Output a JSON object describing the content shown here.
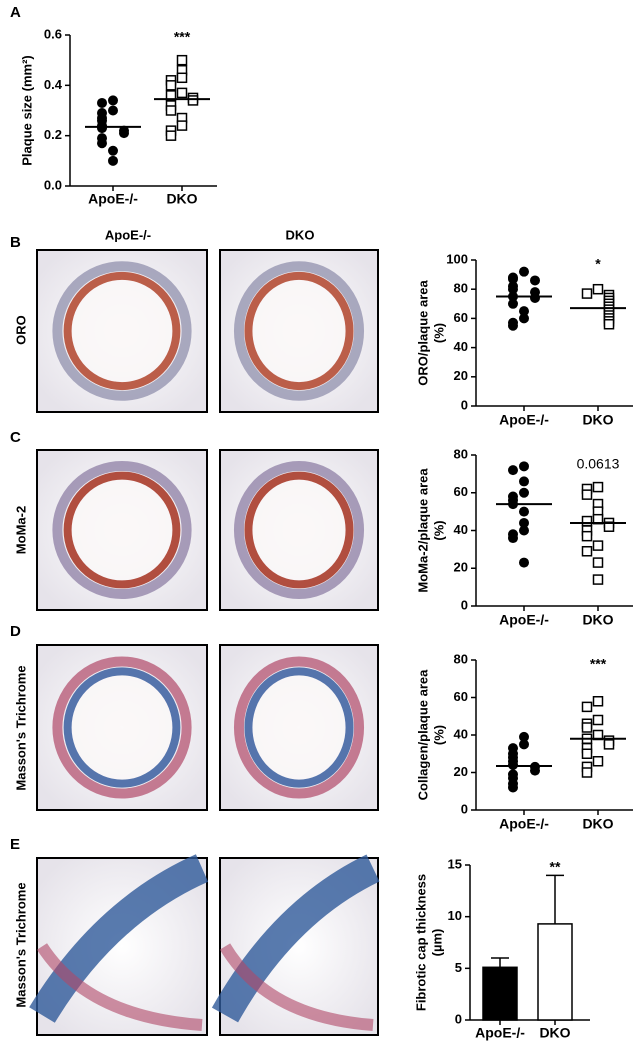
{
  "panels": [
    "A",
    "B",
    "C",
    "D",
    "E"
  ],
  "column_labels": [
    "ApoE-/-",
    "DKO"
  ],
  "row_labels": [
    "ORO",
    "MoMa-2",
    "Masson's Trichrome",
    "Masson's Trichrome"
  ],
  "chart_data": [
    {
      "type": "scatter",
      "ylabel": [
        "Plaque size (mm²)"
      ],
      "categories": [
        "ApoE-/-",
        "DKO"
      ],
      "annotation": "***",
      "ylim": [
        0,
        0.6
      ],
      "yticks": [
        {
          "value": 0,
          "label": "0.0"
        },
        0.2,
        0.4,
        0.6
      ],
      "groups": [
        {
          "marker": "circle",
          "values": [
            0.34,
            0.33,
            0.3,
            0.29,
            0.27,
            0.26,
            0.24,
            0.23,
            0.22,
            0.21,
            0.19,
            0.17,
            0.14,
            0.1
          ],
          "mean": 0.235
        },
        {
          "marker": "square",
          "values": [
            0.5,
            0.46,
            0.43,
            0.42,
            0.4,
            0.37,
            0.36,
            0.35,
            0.34,
            0.32,
            0.3,
            0.27,
            0.24,
            0.22,
            0.2
          ],
          "mean": 0.345
        }
      ]
    },
    {
      "type": "scatter",
      "ylabel": [
        "ORO/plaque area",
        "(%)"
      ],
      "categories": [
        "ApoE-/-",
        "DKO"
      ],
      "annotation": "*",
      "ylim": [
        0,
        100
      ],
      "yticks": [
        0,
        20,
        40,
        60,
        80,
        100
      ],
      "groups": [
        {
          "marker": "circle",
          "values": [
            92,
            88,
            87,
            86,
            82,
            80,
            78,
            75,
            74,
            70,
            65,
            60,
            57,
            55
          ],
          "mean": 75
        },
        {
          "marker": "square",
          "values": [
            80,
            77,
            76,
            74,
            72,
            70,
            68,
            66,
            64,
            62,
            60,
            58,
            56
          ],
          "mean": 67
        }
      ]
    },
    {
      "type": "scatter",
      "ylabel": [
        "MoMa-2/plaque area",
        "(%)"
      ],
      "categories": [
        "ApoE-/-",
        "DKO"
      ],
      "annotation": "0.0613",
      "ylim": [
        0,
        80
      ],
      "yticks": [
        0,
        20,
        40,
        60,
        80
      ],
      "groups": [
        {
          "marker": "circle",
          "values": [
            74,
            72,
            66,
            60,
            58,
            56,
            54,
            50,
            44,
            40,
            38,
            36,
            23
          ],
          "mean": 54
        },
        {
          "marker": "square",
          "values": [
            63,
            62,
            59,
            54,
            50,
            46,
            45,
            44,
            42,
            40,
            37,
            32,
            29,
            23,
            14
          ],
          "mean": 44
        }
      ]
    },
    {
      "type": "scatter",
      "ylabel": [
        "Collagen/plaque area",
        "(%)"
      ],
      "categories": [
        "ApoE-/-",
        "DKO"
      ],
      "annotation": "***",
      "ylim": [
        0,
        80
      ],
      "yticks": [
        0,
        20,
        40,
        60,
        80
      ],
      "groups": [
        {
          "marker": "circle",
          "values": [
            39,
            35,
            33,
            30,
            28,
            26,
            24,
            23,
            21,
            19,
            17,
            14,
            12
          ],
          "mean": 23.5
        },
        {
          "marker": "square",
          "values": [
            58,
            55,
            48,
            46,
            44,
            40,
            38,
            37,
            35,
            33,
            30,
            26,
            23,
            20
          ],
          "mean": 38
        }
      ]
    },
    {
      "type": "bar",
      "ylabel": [
        "Fibrotic cap thickness",
        "(µm)"
      ],
      "categories": [
        "ApoE-/-",
        "DKO"
      ],
      "annotation": "**",
      "ylim": [
        0,
        15
      ],
      "yticks": [
        0,
        5,
        10,
        15
      ],
      "values": [
        5.1,
        9.3
      ],
      "errors": [
        0.9,
        4.7
      ],
      "colors": [
        "#000000",
        "#ffffff"
      ]
    }
  ]
}
